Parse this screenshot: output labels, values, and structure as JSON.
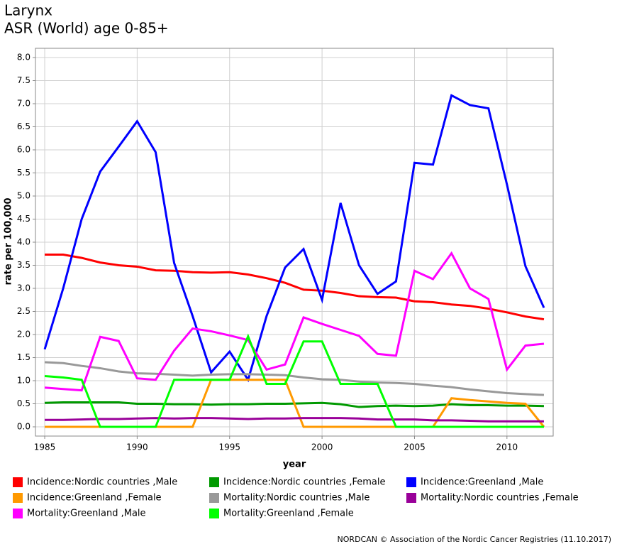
{
  "chart_data": {
    "type": "line",
    "title": "Larynx",
    "subtitle": "ASR (World) age 0-85+",
    "x_label": "year",
    "y_label": "rate per 100,000",
    "footer": "NORDCAN © Association of the Nordic Cancer Registries (11.10.2017)",
    "x": [
      1985,
      1986,
      1987,
      1988,
      1989,
      1990,
      1991,
      1992,
      1993,
      1994,
      1995,
      1996,
      1997,
      1998,
      1999,
      2000,
      2001,
      2002,
      2003,
      2004,
      2005,
      2006,
      2007,
      2008,
      2009,
      2010,
      2011,
      2012
    ],
    "xlim": [
      1984.5,
      2012.5
    ],
    "xticks": [
      1985,
      1990,
      1995,
      2000,
      2005,
      2010
    ],
    "ylim": [
      -0.2,
      8.2
    ],
    "yticks": [
      {
        "value": 0,
        "label": "0.0"
      },
      0.5,
      {
        "value": 1,
        "label": "1.0"
      },
      1.5,
      {
        "value": 2,
        "label": "2.0"
      },
      2.5,
      {
        "value": 3,
        "label": "3.0"
      },
      3.5,
      {
        "value": 4,
        "label": "4.0"
      },
      4.5,
      {
        "value": 5,
        "label": "5.0"
      },
      5.5,
      {
        "value": 6,
        "label": "6.0"
      },
      6.5,
      {
        "value": 7,
        "label": "7.0"
      },
      7.5,
      {
        "value": 8,
        "label": "8.0"
      }
    ],
    "grid": true,
    "legend": "bottom",
    "series": [
      {
        "name": "Incidence:Nordic countries ,Male",
        "color": "#ff0000",
        "values": [
          3.73,
          3.73,
          3.66,
          3.56,
          3.5,
          3.47,
          3.39,
          3.38,
          3.35,
          3.34,
          3.35,
          3.3,
          3.22,
          3.12,
          2.97,
          2.95,
          2.9,
          2.83,
          2.81,
          2.8,
          2.72,
          2.7,
          2.65,
          2.62,
          2.56,
          2.48,
          2.39,
          2.33
        ]
      },
      {
        "name": "Incidence:Nordic countries ,Female",
        "color": "#009900",
        "values": [
          0.52,
          0.53,
          0.53,
          0.53,
          0.53,
          0.5,
          0.5,
          0.49,
          0.49,
          0.48,
          0.49,
          0.49,
          0.5,
          0.5,
          0.51,
          0.52,
          0.49,
          0.43,
          0.45,
          0.46,
          0.45,
          0.46,
          0.49,
          0.47,
          0.47,
          0.46,
          0.46,
          0.45
        ]
      },
      {
        "name": "Incidence:Greenland ,Male",
        "color": "#0000ff",
        "values": [
          1.68,
          3.0,
          4.5,
          5.53,
          6.07,
          6.62,
          5.95,
          3.55,
          2.4,
          1.18,
          1.63,
          1.02,
          2.4,
          3.45,
          3.85,
          2.75,
          4.85,
          3.5,
          2.88,
          3.15,
          5.72,
          5.68,
          7.18,
          6.97,
          6.9,
          5.25,
          3.48,
          2.58
        ]
      },
      {
        "name": "Incidence:Greenland ,Female",
        "color": "#ff9900",
        "values": [
          0,
          0,
          0,
          0,
          0,
          0,
          0,
          0,
          0,
          1.02,
          1.02,
          1.02,
          1.02,
          1.02,
          0,
          0,
          0,
          0,
          0,
          0,
          0,
          0,
          0.62,
          0.58,
          0.55,
          0.52,
          0.5,
          0
        ]
      },
      {
        "name": "Mortality:Nordic countries ,Male",
        "color": "#999999",
        "values": [
          1.4,
          1.38,
          1.32,
          1.27,
          1.2,
          1.16,
          1.15,
          1.13,
          1.11,
          1.13,
          1.14,
          1.14,
          1.13,
          1.12,
          1.07,
          1.03,
          1.02,
          0.98,
          0.96,
          0.95,
          0.93,
          0.89,
          0.86,
          0.81,
          0.77,
          0.73,
          0.71,
          0.69
        ]
      },
      {
        "name": "Mortality:Nordic countries ,Female",
        "color": "#990099",
        "values": [
          0.15,
          0.15,
          0.16,
          0.17,
          0.17,
          0.18,
          0.19,
          0.18,
          0.19,
          0.19,
          0.18,
          0.17,
          0.18,
          0.18,
          0.19,
          0.19,
          0.19,
          0.18,
          0.16,
          0.16,
          0.16,
          0.14,
          0.14,
          0.13,
          0.12,
          0.12,
          0.12,
          0.12
        ]
      },
      {
        "name": "Mortality:Greenland ,Male",
        "color": "#ff00ff",
        "values": [
          0.85,
          0.82,
          0.79,
          1.95,
          1.86,
          1.05,
          1.02,
          1.65,
          2.13,
          2.07,
          1.98,
          1.88,
          1.24,
          1.35,
          2.37,
          2.23,
          2.1,
          1.97,
          1.58,
          1.54,
          3.38,
          3.2,
          3.76,
          3.0,
          2.77,
          1.24,
          1.76,
          1.8
        ]
      },
      {
        "name": "Mortality:Greenland ,Female",
        "color": "#00ff00",
        "values": [
          1.1,
          1.07,
          1.02,
          0,
          0,
          0,
          0,
          1.02,
          1.02,
          1.02,
          1.02,
          1.96,
          0.93,
          0.93,
          1.85,
          1.85,
          0.93,
          0.93,
          0.93,
          0,
          0,
          0,
          0,
          0,
          0,
          0,
          0,
          0
        ]
      }
    ]
  }
}
